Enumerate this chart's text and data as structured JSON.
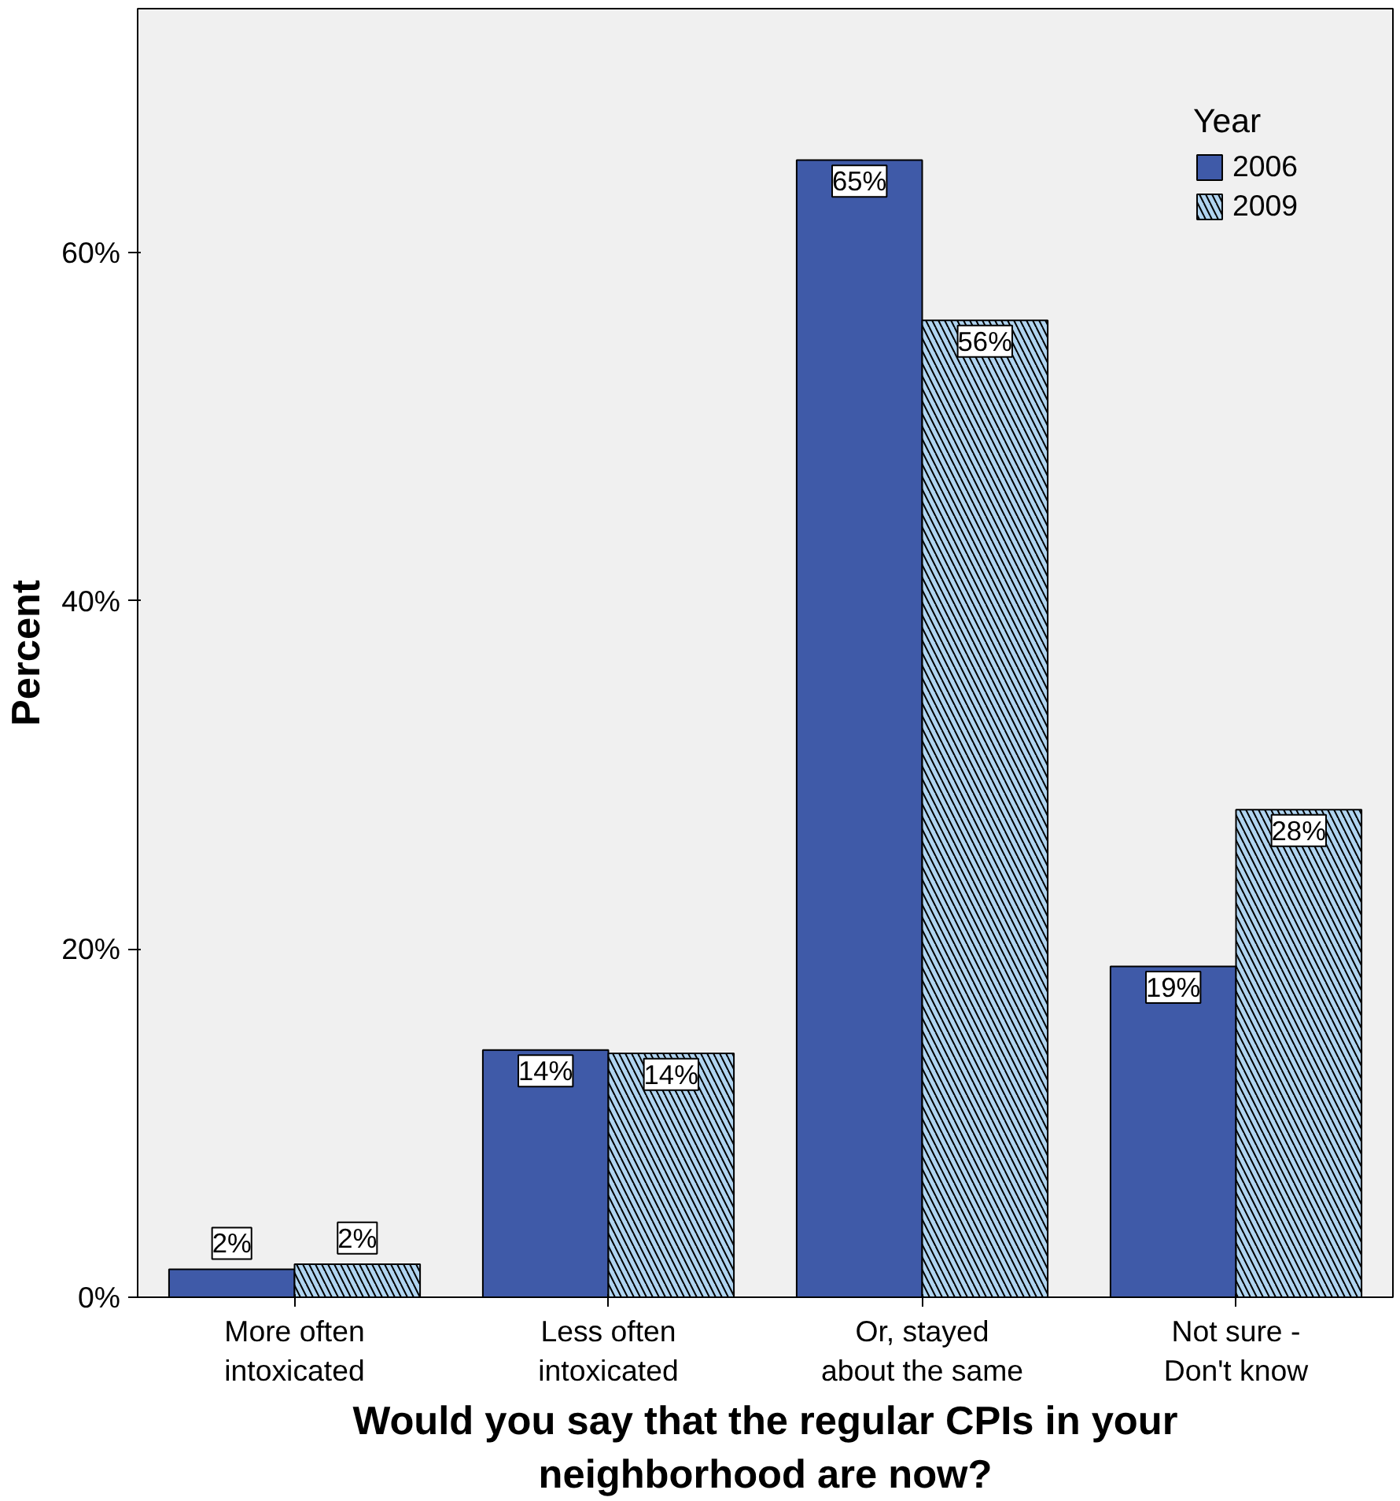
{
  "chart_data": {
    "type": "bar",
    "xlabel": "Would you say that the regular CPIs in your neighborhood are now?",
    "ylabel": "Percent",
    "legend_title": "Year",
    "categories": [
      "More often intoxicated",
      "Less often intoxicated",
      "Or, stayed about the same",
      "Not sure - Don't know"
    ],
    "series": [
      {
        "name": "2006",
        "color": "#3f5aa8",
        "values": [
          1.6,
          14.2,
          65.3,
          19.0
        ],
        "value_labels": [
          "2%",
          "14%",
          "65%",
          "19%"
        ]
      },
      {
        "name": "2009",
        "color": "#b0d4f0",
        "values": [
          1.9,
          14.0,
          56.1,
          28.0
        ],
        "value_labels": [
          "2%",
          "14%",
          "56%",
          "28%"
        ]
      }
    ],
    "ylim": [
      0,
      74
    ],
    "yticks": [
      {
        "value": 0,
        "label": "0%"
      },
      {
        "value": 20,
        "label": "20%"
      },
      {
        "value": 40,
        "label": "40%"
      },
      {
        "value": 60,
        "label": "60%"
      }
    ],
    "grid": false,
    "legend": "top right"
  }
}
